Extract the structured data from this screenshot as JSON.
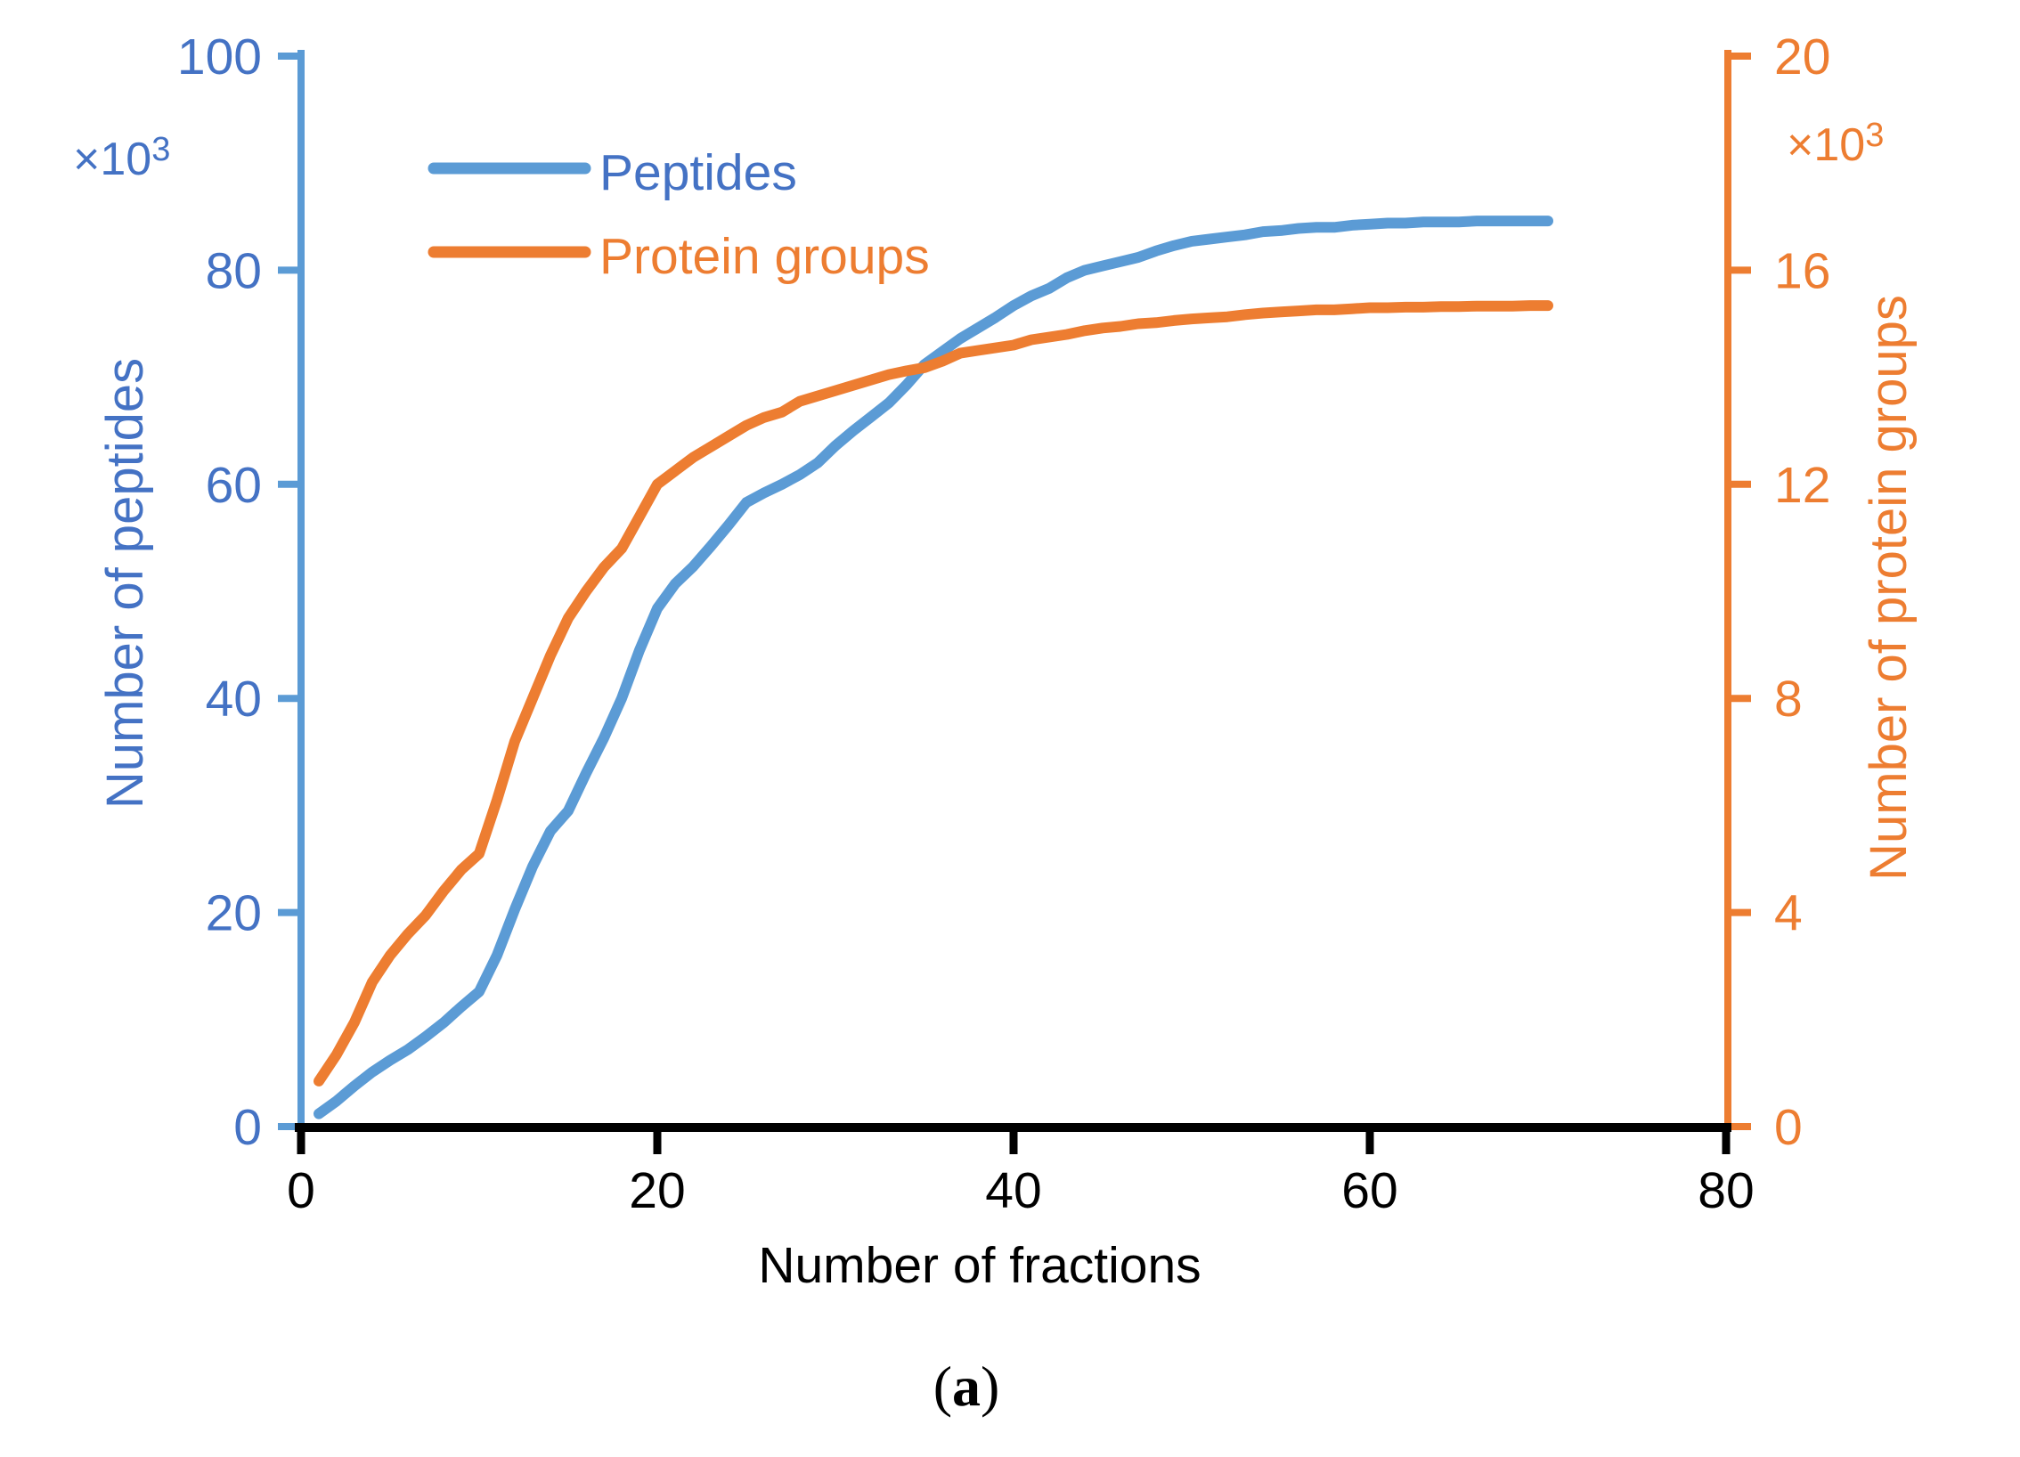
{
  "chart_data": {
    "type": "line",
    "title": "",
    "xlabel": "Number of fractions",
    "x_axis": {
      "ticks": [
        0,
        20,
        40,
        60,
        80
      ],
      "range": [
        0,
        80
      ]
    },
    "left_axis": {
      "label": "Number of peptides",
      "multiplier_base": "×10",
      "multiplier_exp": "3",
      "ticks": [
        0,
        20,
        40,
        60,
        80,
        100
      ],
      "range": [
        0,
        100
      ]
    },
    "right_axis": {
      "label": "Number of protein groups",
      "multiplier_base": "×10",
      "multiplier_exp": "3",
      "ticks": [
        0,
        4,
        8,
        12,
        16,
        20
      ],
      "range": [
        0,
        20
      ]
    },
    "legend": {
      "position": "top-left-inside",
      "items": [
        {
          "label": "Peptides",
          "color": "#5B9BD5"
        },
        {
          "label": "Protein groups",
          "color": "#ED7D31"
        }
      ]
    },
    "series": [
      {
        "name": "Peptides",
        "axis": "left",
        "color": "#5B9BD5",
        "x": [
          1,
          2,
          3,
          4,
          5,
          6,
          7,
          8,
          9,
          10,
          11,
          12,
          13,
          14,
          15,
          16,
          17,
          18,
          19,
          20,
          21,
          22,
          23,
          24,
          25,
          26,
          27,
          28,
          29,
          30,
          31,
          32,
          33,
          34,
          35,
          36,
          37,
          38,
          39,
          40,
          41,
          42,
          43,
          44,
          45,
          46,
          47,
          48,
          49,
          50,
          51,
          52,
          53,
          54,
          55,
          56,
          57,
          58,
          59,
          60,
          61,
          62,
          63,
          64,
          65,
          66,
          67,
          68,
          69,
          70
        ],
        "values": [
          1.2,
          2.4,
          3.8,
          5.1,
          6.2,
          7.2,
          8.4,
          9.7,
          11.2,
          12.6,
          16.0,
          20.3,
          24.3,
          27.6,
          29.5,
          33.0,
          36.3,
          40.0,
          44.5,
          48.4,
          50.7,
          52.3,
          54.2,
          56.2,
          58.3,
          59.2,
          60.0,
          60.9,
          62.0,
          63.6,
          65.0,
          66.3,
          67.6,
          69.3,
          71.2,
          72.4,
          73.6,
          74.6,
          75.6,
          76.7,
          77.6,
          78.3,
          79.3,
          80.0,
          80.4,
          80.8,
          81.2,
          81.8,
          82.3,
          82.7,
          82.9,
          83.1,
          83.3,
          83.6,
          83.7,
          83.9,
          84.0,
          84.0,
          84.2,
          84.3,
          84.4,
          84.4,
          84.5,
          84.5,
          84.5,
          84.6,
          84.6,
          84.6,
          84.6,
          84.6
        ]
      },
      {
        "name": "Protein groups",
        "axis": "right",
        "color": "#ED7D31",
        "x": [
          1,
          2,
          3,
          4,
          5,
          6,
          7,
          8,
          9,
          10,
          11,
          12,
          13,
          14,
          15,
          16,
          17,
          18,
          19,
          20,
          21,
          22,
          23,
          24,
          25,
          26,
          27,
          28,
          29,
          30,
          31,
          32,
          33,
          34,
          35,
          36,
          37,
          38,
          39,
          40,
          41,
          42,
          43,
          44,
          45,
          46,
          47,
          48,
          49,
          50,
          51,
          52,
          53,
          54,
          55,
          56,
          57,
          58,
          59,
          60,
          61,
          62,
          63,
          64,
          65,
          66,
          67,
          68,
          69,
          70
        ],
        "values": [
          0.85,
          1.35,
          1.95,
          2.7,
          3.2,
          3.6,
          3.95,
          4.4,
          4.8,
          5.1,
          6.1,
          7.2,
          8.0,
          8.8,
          9.5,
          10.0,
          10.45,
          10.8,
          11.4,
          12.0,
          12.25,
          12.5,
          12.7,
          12.9,
          13.1,
          13.25,
          13.35,
          13.55,
          13.65,
          13.75,
          13.85,
          13.95,
          14.05,
          14.12,
          14.18,
          14.3,
          14.45,
          14.5,
          14.55,
          14.6,
          14.7,
          14.75,
          14.8,
          14.87,
          14.92,
          14.95,
          15.0,
          15.02,
          15.06,
          15.09,
          15.11,
          15.13,
          15.17,
          15.2,
          15.22,
          15.24,
          15.26,
          15.26,
          15.28,
          15.3,
          15.3,
          15.31,
          15.31,
          15.32,
          15.32,
          15.33,
          15.33,
          15.33,
          15.34,
          15.34
        ]
      }
    ],
    "caption": {
      "open": "(",
      "letter": "a",
      "close": ")"
    }
  },
  "colors": {
    "peptides_line": "#5B9BD5",
    "peptides_text": "#4472C4",
    "protein_line": "#ED7D31",
    "protein_text": "#ED7D31",
    "axis_black": "#000000"
  }
}
